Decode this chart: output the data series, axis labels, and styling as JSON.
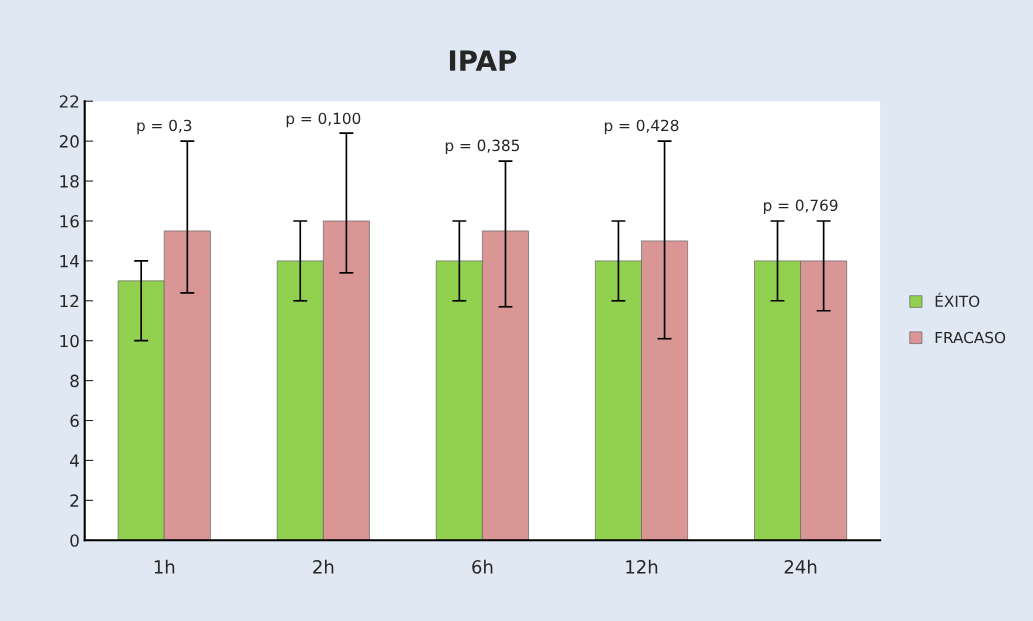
{
  "chart_data": {
    "type": "bar",
    "title": "IPAP",
    "categories": [
      "1h",
      "2h",
      "6h",
      "12h",
      "24h"
    ],
    "series": [
      {
        "name": "ÉXITO",
        "color": "#92d050",
        "values": [
          13,
          14,
          14,
          14,
          14
        ],
        "errors": [
          [
            10,
            14
          ],
          [
            12,
            16
          ],
          [
            12,
            16
          ],
          [
            12,
            16
          ],
          [
            12,
            16
          ]
        ]
      },
      {
        "name": "FRACASO",
        "color": "#d99694",
        "values": [
          15.5,
          16,
          15.5,
          15,
          14
        ],
        "errors": [
          [
            12.4,
            20
          ],
          [
            13.4,
            20.4
          ],
          [
            11.7,
            19
          ],
          [
            10.1,
            20
          ],
          [
            11.5,
            16
          ]
        ]
      }
    ],
    "annotations": [
      "p = 0,3",
      "p = 0,100",
      "p = 0,385",
      "p = 0,428",
      "p = 0,769"
    ],
    "ylim": [
      0,
      22
    ],
    "yticks": [
      0,
      2,
      4,
      6,
      8,
      10,
      12,
      14,
      16,
      18,
      20,
      22
    ],
    "grid": false,
    "legend": "right"
  }
}
